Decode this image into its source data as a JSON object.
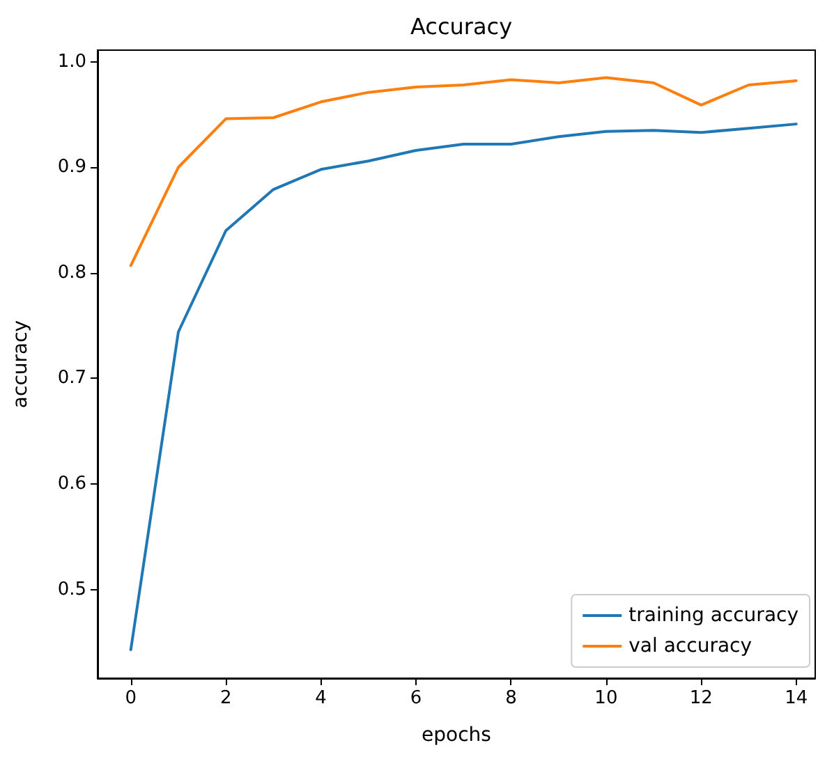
{
  "chart_data": {
    "type": "line",
    "title": "Accuracy",
    "xlabel": "epochs",
    "ylabel": "accuracy",
    "x": [
      0,
      1,
      2,
      3,
      4,
      5,
      6,
      7,
      8,
      9,
      10,
      11,
      12,
      13,
      14
    ],
    "series": [
      {
        "name": "training accuracy",
        "color": "#1f77b4",
        "values": [
          0.443,
          0.744,
          0.84,
          0.879,
          0.898,
          0.906,
          0.916,
          0.922,
          0.922,
          0.929,
          0.934,
          0.935,
          0.933,
          0.937,
          0.941
        ]
      },
      {
        "name": "val accuracy",
        "color": "#ff7f0e",
        "values": [
          0.807,
          0.9,
          0.946,
          0.947,
          0.962,
          0.971,
          0.976,
          0.978,
          0.983,
          0.98,
          0.985,
          0.98,
          0.959,
          0.978,
          0.982
        ]
      }
    ],
    "xlim": [
      -0.7,
      14.4
    ],
    "xticks": [
      0,
      2,
      4,
      6,
      8,
      10,
      12,
      14
    ],
    "ylim": [
      0.416,
      1.011
    ],
    "yticks": [
      0.5,
      0.6,
      0.7,
      0.8,
      0.9,
      {
        "value": 1,
        "label": "1.0"
      }
    ],
    "grid": false,
    "legend": "bottom right",
    "marker": "none",
    "line_style": "solid"
  }
}
